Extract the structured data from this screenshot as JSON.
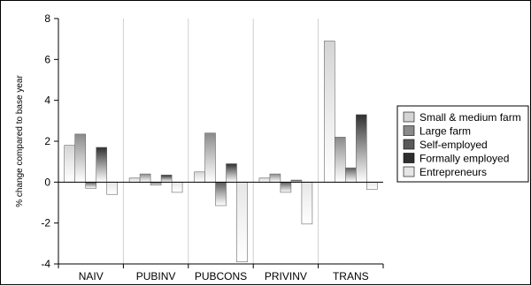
{
  "chart_data": {
    "type": "bar",
    "categories": [
      "NAIV",
      "PUBINV",
      "PUBCONS",
      "PRIVINV",
      "TRANS"
    ],
    "series": [
      {
        "name": "Small & medium farm",
        "color": "#d4d4d4",
        "values": [
          1.8,
          0.2,
          0.5,
          0.2,
          6.9
        ]
      },
      {
        "name": "Large farm",
        "color": "#8a8a8a",
        "values": [
          2.35,
          0.4,
          2.4,
          0.4,
          2.2
        ]
      },
      {
        "name": "Self-employed",
        "color": "#5a5a5a",
        "values": [
          -0.3,
          -0.15,
          -1.15,
          -0.5,
          0.7
        ]
      },
      {
        "name": "Formally employed",
        "color": "#2e2e2e",
        "values": [
          1.7,
          0.35,
          0.9,
          0.1,
          3.3
        ]
      },
      {
        "name": "Entrepreneurs",
        "color": "#e6e6e6",
        "values": [
          -0.6,
          -0.5,
          -3.9,
          -2.05,
          -0.35
        ]
      }
    ],
    "ylabel": "% change compared to  base year",
    "xlabel": "",
    "ylim": [
      -4,
      8
    ],
    "yticks": [
      -4,
      -2,
      0,
      2,
      4,
      6,
      8
    ],
    "grid": "vertical",
    "legend": "right"
  }
}
